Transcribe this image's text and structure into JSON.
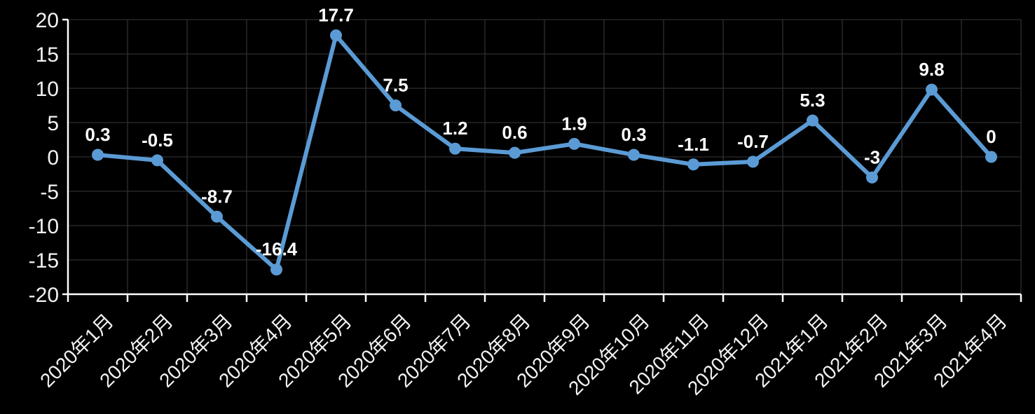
{
  "chart_data": {
    "type": "line",
    "title": "",
    "categories": [
      "2020年1月",
      "2020年2月",
      "2020年3月",
      "2020年4月",
      "2020年5月",
      "2020年6月",
      "2020年7月",
      "2020年8月",
      "2020年9月",
      "2020年10月",
      "2020年11月",
      "2020年12月",
      "2021年1月",
      "2021年2月",
      "2021年3月",
      "2021年4月"
    ],
    "values": [
      0.3,
      -0.5,
      -8.7,
      -16.4,
      17.7,
      7.5,
      1.2,
      0.6,
      1.9,
      0.3,
      -1.1,
      -0.7,
      5.3,
      -3,
      9.8,
      0
    ],
    "data_labels": [
      "0.3",
      "-0.5",
      "-8.7",
      "-16.4",
      "17.7",
      "7.5",
      "1.2",
      "0.6",
      "1.9",
      "0.3",
      "-1.1",
      "-0.7",
      "5.3",
      "-3",
      "9.8",
      "0"
    ],
    "y_ticks": [
      "20",
      "15",
      "10",
      "5",
      "0",
      "-5",
      "-10",
      "-15",
      "-20"
    ],
    "ylim": [
      -20,
      20
    ],
    "xlabel": "",
    "ylabel": "",
    "grid": true,
    "legend": "none",
    "x_label_rotation_deg": -45,
    "colors": {
      "background": "#000000",
      "line": "#5B9BD5",
      "marker": "#5B9BD5",
      "gridline": "#2E2E2E",
      "axis": "#FFFFFF",
      "tick_label": "#F2F2F2",
      "data_label": "#FFFFFF"
    }
  }
}
